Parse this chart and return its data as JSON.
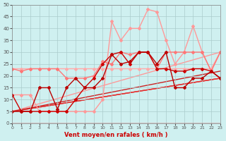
{
  "xlabel": "Vent moyen/en rafales ( km/h )",
  "xlim": [
    0,
    23
  ],
  "ylim": [
    0,
    50
  ],
  "xticks": [
    0,
    1,
    2,
    3,
    4,
    5,
    6,
    7,
    8,
    9,
    10,
    11,
    12,
    13,
    14,
    15,
    16,
    17,
    18,
    19,
    20,
    21,
    22,
    23
  ],
  "yticks": [
    0,
    5,
    10,
    15,
    20,
    25,
    30,
    35,
    40,
    45,
    50
  ],
  "bg_color": "#cff0f0",
  "grid_color": "#aacccc",
  "series": [
    {
      "x": [
        0,
        1,
        2,
        3,
        4,
        5,
        6,
        7,
        8,
        9,
        10,
        11,
        12,
        13,
        14,
        15,
        16,
        17,
        18,
        19,
        20,
        21,
        22,
        23
      ],
      "y": [
        23,
        23,
        23,
        23,
        23,
        23,
        23,
        23,
        23,
        23,
        23,
        23,
        23,
        23,
        23,
        23,
        23,
        23,
        23,
        23,
        23,
        23,
        23,
        30
      ],
      "color": "#ffaaaa",
      "lw": 1.0,
      "marker": "D",
      "ms": 2.0
    },
    {
      "x": [
        0,
        1,
        2,
        3,
        4,
        5,
        6,
        7,
        8,
        9,
        10,
        11,
        12,
        13,
        14,
        15,
        16,
        17,
        18,
        19,
        20,
        21,
        22,
        23
      ],
      "y": [
        12,
        12,
        12,
        5,
        5,
        5,
        5,
        5,
        5,
        5,
        10,
        43,
        35,
        40,
        40,
        48,
        47,
        35,
        25,
        30,
        41,
        30,
        22,
        30
      ],
      "color": "#ff9999",
      "lw": 1.0,
      "marker": "D",
      "ms": 2.0
    },
    {
      "x": [
        0,
        1,
        2,
        3,
        4,
        5,
        6,
        7,
        8,
        9,
        10,
        11,
        12,
        13,
        14,
        15,
        16,
        17,
        18,
        19,
        20,
        21,
        22,
        23
      ],
      "y": [
        23,
        22,
        23,
        23,
        23,
        23,
        19,
        19,
        19,
        20,
        26,
        25,
        30,
        29,
        30,
        30,
        23,
        30,
        30,
        30,
        30,
        30,
        22,
        30
      ],
      "color": "#ff7777",
      "lw": 1.0,
      "marker": "D",
      "ms": 2.0
    },
    {
      "x": [
        0,
        1,
        2,
        3,
        4,
        5,
        6,
        7,
        8,
        9,
        10,
        11,
        12,
        13,
        14,
        15,
        16,
        17,
        18,
        19,
        20,
        21,
        22,
        23
      ],
      "y": [
        12,
        5,
        5,
        5,
        5,
        5,
        5,
        10,
        15,
        19,
        25,
        29,
        30,
        25,
        30,
        30,
        23,
        23,
        22,
        22,
        23,
        23,
        22,
        19
      ],
      "color": "#cc0000",
      "lw": 1.0,
      "marker": "D",
      "ms": 2.0
    },
    {
      "x": [
        0,
        1,
        2,
        3,
        4,
        5,
        6,
        7,
        8,
        9,
        10,
        11,
        12,
        13,
        14,
        15,
        16,
        17,
        18,
        19,
        20,
        21,
        22,
        23
      ],
      "y": [
        5,
        5,
        5,
        15,
        15,
        6,
        15,
        19,
        15,
        15,
        19,
        29,
        25,
        26,
        30,
        30,
        25,
        30,
        15,
        15,
        19,
        19,
        22,
        19
      ],
      "color": "#bb0000",
      "lw": 1.0,
      "marker": "D",
      "ms": 2.0
    },
    {
      "x": [
        0,
        23
      ],
      "y": [
        5,
        19
      ],
      "color": "#ee4444",
      "lw": 1.0,
      "marker": null,
      "ms": 0
    },
    {
      "x": [
        0,
        23
      ],
      "y": [
        5,
        19
      ],
      "color": "#ff6666",
      "lw": 1.0,
      "marker": null,
      "ms": 0
    },
    {
      "x": [
        0,
        23
      ],
      "y": [
        5,
        30
      ],
      "color": "#ff9999",
      "lw": 1.0,
      "marker": null,
      "ms": 0
    },
    {
      "x": [
        0,
        23
      ],
      "y": [
        5,
        19
      ],
      "color": "#dd3333",
      "lw": 1.0,
      "marker": null,
      "ms": 0
    },
    {
      "x": [
        0,
        23
      ],
      "y": [
        5,
        22
      ],
      "color": "#cc2222",
      "lw": 1.0,
      "marker": null,
      "ms": 0
    }
  ]
}
